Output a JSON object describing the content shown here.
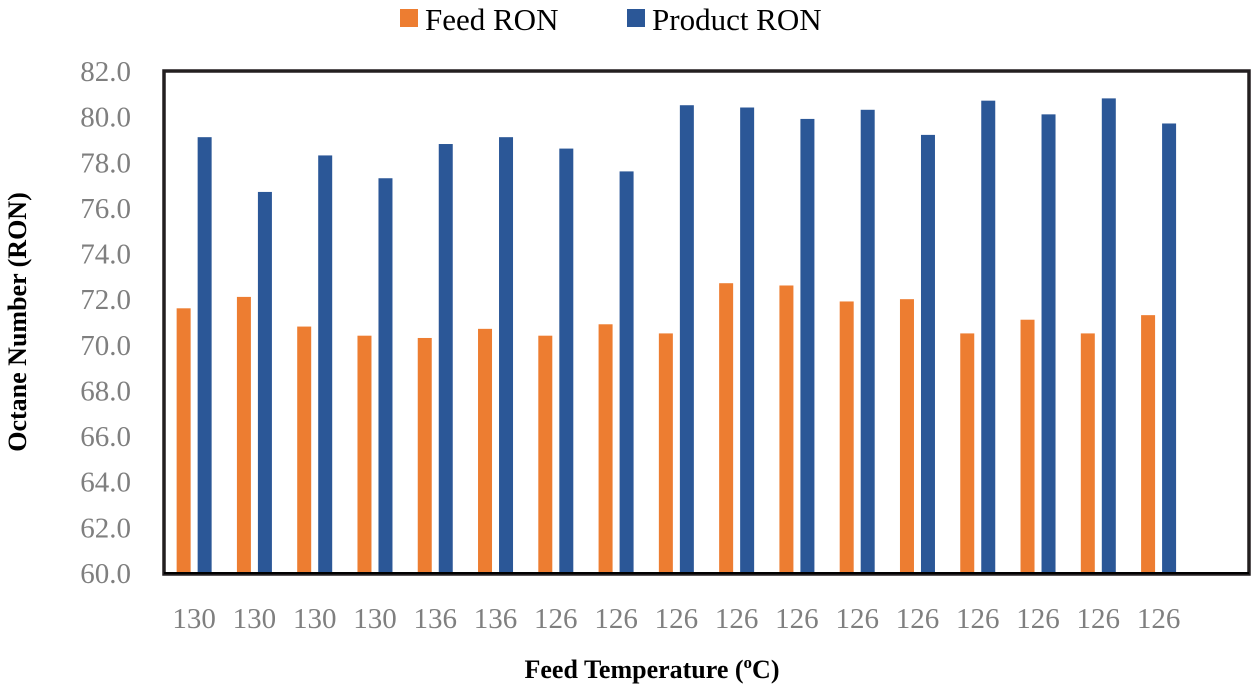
{
  "chart_data": {
    "type": "bar",
    "title": "",
    "xlabel": "Feed Temperature (",
    "xlabel_sup": "o",
    "xlabel_end": "C)",
    "ylabel": "Octane Number (RON)",
    "ylim": [
      60,
      82
    ],
    "yticks": [
      "60.0",
      "62.0",
      "64.0",
      "66.0",
      "68.0",
      "70.0",
      "72.0",
      "74.0",
      "76.0",
      "78.0",
      "80.0",
      "82.0"
    ],
    "grid": false,
    "legend_position": "top",
    "categories": [
      "130",
      "130",
      "130",
      "130",
      "136",
      "136",
      "126",
      "126",
      "126",
      "126",
      "126",
      "126",
      "126",
      "126",
      "126",
      "126",
      "126"
    ],
    "series": [
      {
        "name": "Feed RON",
        "color": "#ED7D31",
        "values": [
          71.6,
          72.1,
          70.8,
          70.4,
          70.3,
          70.7,
          70.4,
          70.9,
          70.5,
          72.7,
          72.6,
          71.9,
          72.0,
          70.5,
          71.1,
          70.5,
          71.3
        ]
      },
      {
        "name": "Product RON",
        "color": "#2B5797",
        "values": [
          79.1,
          76.7,
          78.3,
          77.3,
          78.8,
          79.1,
          78.6,
          77.6,
          80.5,
          80.4,
          79.9,
          80.3,
          79.2,
          80.7,
          80.1,
          80.8,
          79.7
        ]
      }
    ]
  }
}
